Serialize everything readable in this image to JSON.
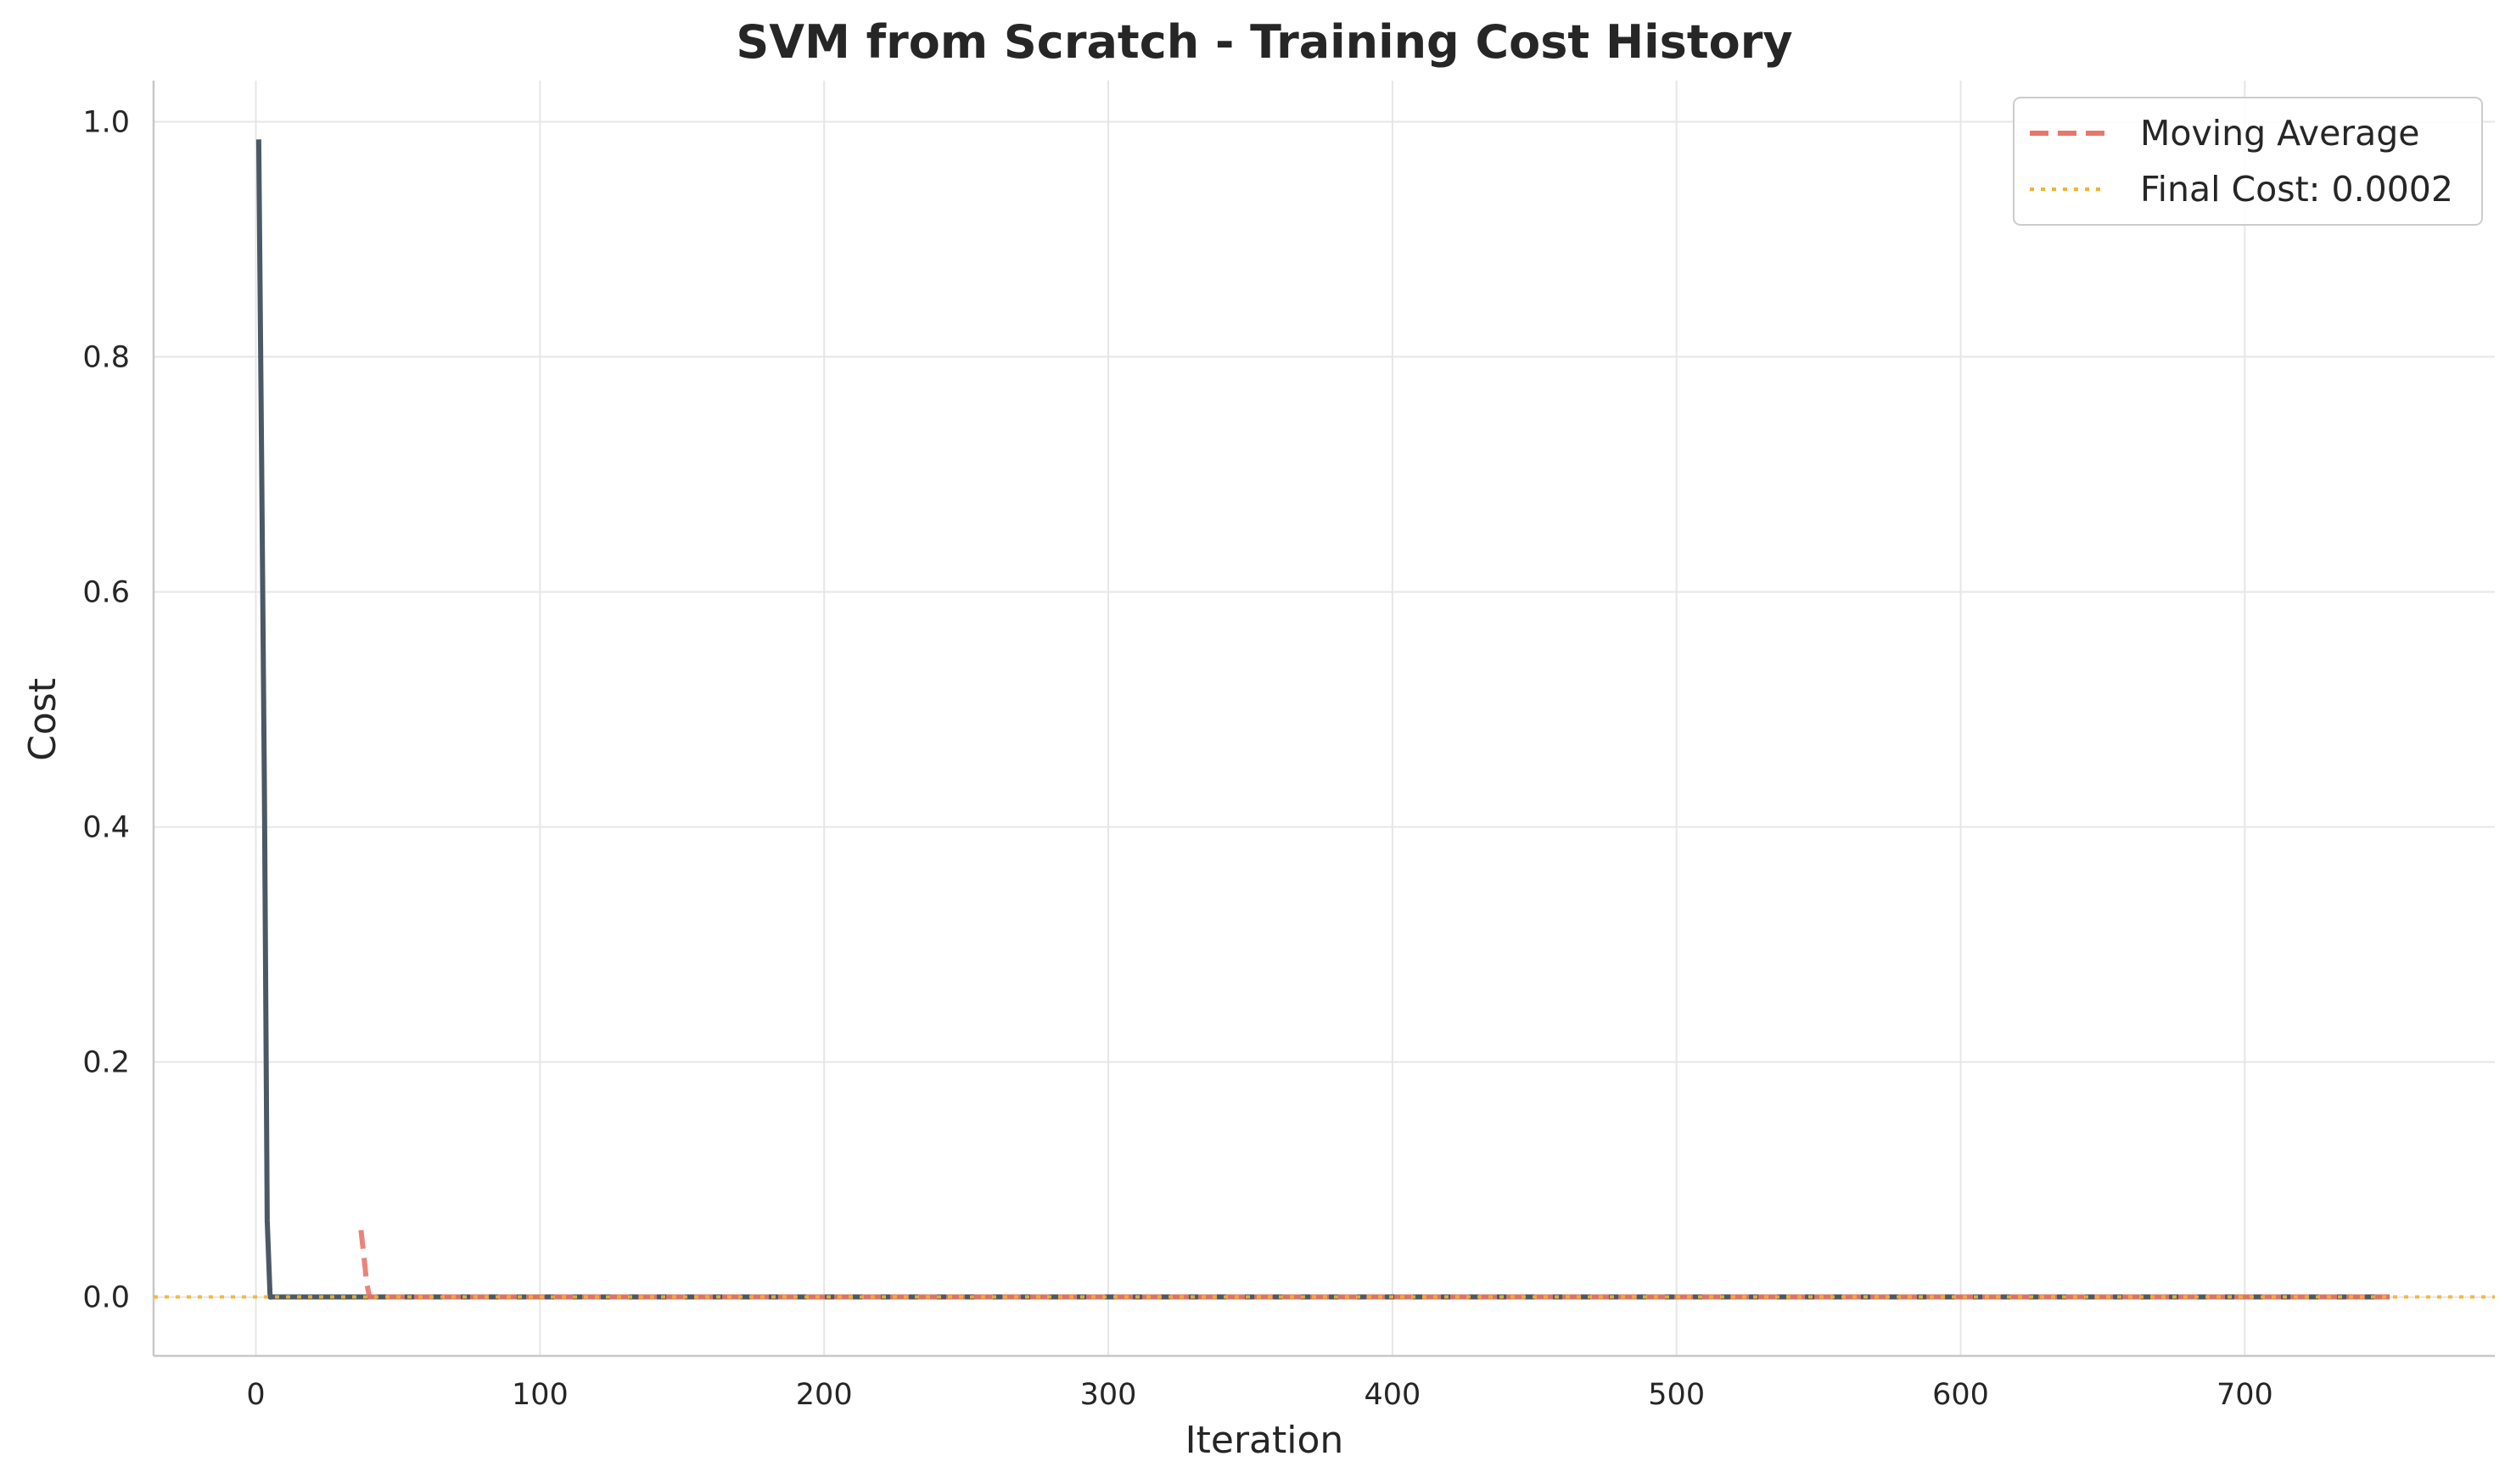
{
  "chart_data": {
    "type": "line",
    "title": "SVM from Scratch - Training Cost History",
    "xlabel": "Iteration",
    "ylabel": "Cost",
    "xlim": [
      -36,
      788
    ],
    "ylim": [
      -0.05,
      1.035
    ],
    "xticks": [
      0,
      100,
      200,
      300,
      400,
      500,
      600,
      700
    ],
    "yticks": [
      0.0,
      0.2,
      0.4,
      0.6,
      0.8,
      1.0
    ],
    "xtick_labels": [
      "0",
      "100",
      "200",
      "300",
      "400",
      "500",
      "600",
      "700"
    ],
    "ytick_labels": [
      "0.0",
      "0.2",
      "0.4",
      "0.6",
      "0.8",
      "1.0"
    ],
    "grid": true,
    "legend_position": "top-right",
    "series": [
      {
        "style": "solid",
        "color": "#4b5966",
        "x": [
          1,
          2,
          3,
          4,
          5,
          6,
          10,
          50,
          100,
          200,
          300,
          400,
          500,
          600,
          700,
          751
        ],
        "y": [
          0.985,
          0.72,
          0.43,
          0.065,
          0.0,
          0.0002,
          0.0002,
          0.0002,
          0.0002,
          0.0002,
          0.0002,
          0.0002,
          0.0002,
          0.0002,
          0.0002,
          0.0002
        ]
      },
      {
        "name": "Moving Average",
        "style": "dashed",
        "color": "#e8776a",
        "x": [
          37,
          38,
          39,
          40,
          45,
          100,
          200,
          300,
          400,
          500,
          600,
          700,
          751
        ],
        "y": [
          0.057,
          0.035,
          0.012,
          0.0002,
          0.0002,
          0.0002,
          0.0002,
          0.0002,
          0.0002,
          0.0002,
          0.0002,
          0.0002,
          0.0002
        ]
      }
    ],
    "hlines": [
      {
        "name": "Final Cost: 0.0002",
        "y": 0.0002,
        "style": "dotted",
        "color": "#f3b230"
      }
    ]
  }
}
